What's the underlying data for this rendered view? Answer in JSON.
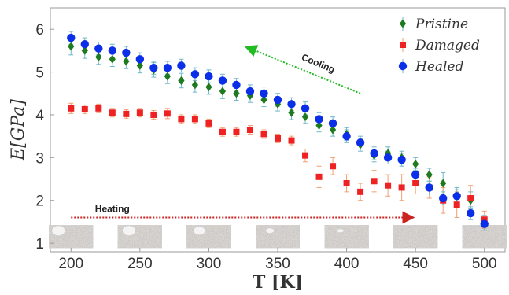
{
  "chart_data": {
    "type": "scatter",
    "xlabel": "T [K]",
    "ylabel": "E[GPa]",
    "xlim": [
      185,
      515
    ],
    "ylim": [
      0.8,
      6.5
    ],
    "xticks": [
      200,
      250,
      300,
      350,
      400,
      450,
      500
    ],
    "yticks": [
      1,
      2,
      3,
      4,
      5,
      6
    ],
    "legend_position": "top-right",
    "series": [
      {
        "name": "Pristine",
        "marker": "diamond",
        "color": "#1e7a1e",
        "error_color": "#6fb7c9",
        "x": [
          200,
          210,
          220,
          230,
          240,
          250,
          260,
          270,
          280,
          290,
          300,
          310,
          320,
          330,
          340,
          350,
          360,
          370,
          380,
          390,
          400,
          410,
          420,
          430,
          440,
          450,
          460,
          470,
          480,
          490,
          500
        ],
        "y": [
          5.6,
          5.5,
          5.35,
          5.3,
          5.25,
          5.15,
          5.05,
          4.9,
          4.8,
          4.7,
          4.65,
          4.55,
          4.5,
          4.45,
          4.35,
          4.25,
          4.05,
          3.95,
          3.75,
          3.65,
          3.55,
          3.3,
          3.05,
          3.1,
          3.0,
          2.85,
          2.6,
          2.4,
          2.1,
          2.0,
          1.5
        ],
        "err": [
          0.2,
          0.18,
          0.17,
          0.17,
          0.17,
          0.17,
          0.17,
          0.17,
          0.17,
          0.17,
          0.17,
          0.17,
          0.16,
          0.16,
          0.16,
          0.16,
          0.16,
          0.15,
          0.15,
          0.15,
          0.15,
          0.15,
          0.15,
          0.15,
          0.15,
          0.15,
          0.15,
          0.25,
          0.2,
          0.2,
          0.15
        ]
      },
      {
        "name": "Damaged",
        "marker": "square",
        "color": "#ee2222",
        "error_color": "#f0a070",
        "x": [
          200,
          210,
          220,
          230,
          240,
          250,
          260,
          270,
          280,
          290,
          300,
          310,
          320,
          330,
          340,
          350,
          360,
          370,
          380,
          390,
          400,
          410,
          420,
          430,
          440,
          450,
          460,
          470,
          480,
          490,
          500
        ],
        "y": [
          4.15,
          4.13,
          4.15,
          4.05,
          4.02,
          4.05,
          4.0,
          4.03,
          3.9,
          3.9,
          3.8,
          3.6,
          3.6,
          3.65,
          3.55,
          3.45,
          3.4,
          3.05,
          2.55,
          2.8,
          2.4,
          2.2,
          2.45,
          2.35,
          2.3,
          2.4,
          2.3,
          2.0,
          1.9,
          2.05,
          1.55
        ],
        "err": [
          0.12,
          0.1,
          0.1,
          0.1,
          0.1,
          0.1,
          0.1,
          0.12,
          0.1,
          0.1,
          0.1,
          0.1,
          0.1,
          0.1,
          0.1,
          0.1,
          0.1,
          0.15,
          0.25,
          0.2,
          0.2,
          0.2,
          0.25,
          0.25,
          0.3,
          0.25,
          0.25,
          0.3,
          0.3,
          0.3,
          0.2
        ]
      },
      {
        "name": "Healed",
        "marker": "circle",
        "color": "#0b2ee8",
        "error_color": "#6fb7c9",
        "x": [
          200,
          210,
          220,
          230,
          240,
          250,
          260,
          270,
          280,
          290,
          300,
          310,
          320,
          330,
          340,
          350,
          360,
          370,
          380,
          390,
          400,
          410,
          420,
          430,
          440,
          450,
          460,
          470,
          480,
          490,
          500
        ],
        "y": [
          5.8,
          5.65,
          5.55,
          5.5,
          5.45,
          5.3,
          5.1,
          5.1,
          5.15,
          4.95,
          4.9,
          4.8,
          4.7,
          4.55,
          4.5,
          4.35,
          4.25,
          4.15,
          3.9,
          3.8,
          3.5,
          3.35,
          3.1,
          3.0,
          2.95,
          2.6,
          2.3,
          2.05,
          2.1,
          1.7,
          1.45
        ],
        "err": [
          0.15,
          0.15,
          0.15,
          0.15,
          0.15,
          0.15,
          0.15,
          0.15,
          0.15,
          0.15,
          0.15,
          0.15,
          0.15,
          0.15,
          0.15,
          0.15,
          0.15,
          0.15,
          0.15,
          0.15,
          0.15,
          0.15,
          0.15,
          0.15,
          0.15,
          0.15,
          0.15,
          0.15,
          0.15,
          0.15,
          0.15
        ]
      }
    ],
    "annotations": [
      {
        "text": "Cooling",
        "arrow_from": [
          410,
          4.5
        ],
        "arrow_to": [
          330,
          5.55
        ],
        "color": "#22bb22"
      },
      {
        "text": "Heating",
        "arrow_from": [
          200,
          1.6
        ],
        "arrow_to": [
          445,
          1.6
        ],
        "color": "#cc2222"
      }
    ],
    "insets": {
      "type": "texture-snapshots",
      "count": 7,
      "centers_x": [
        200,
        250,
        300,
        350,
        400,
        450,
        500
      ],
      "y_top": 1.42,
      "y_bottom": 0.89
    },
    "grid": false
  },
  "palette": {
    "background": "#ffffff",
    "frame": "#9a9a9a",
    "text": "#333333",
    "inset_base": "#8a8278"
  }
}
